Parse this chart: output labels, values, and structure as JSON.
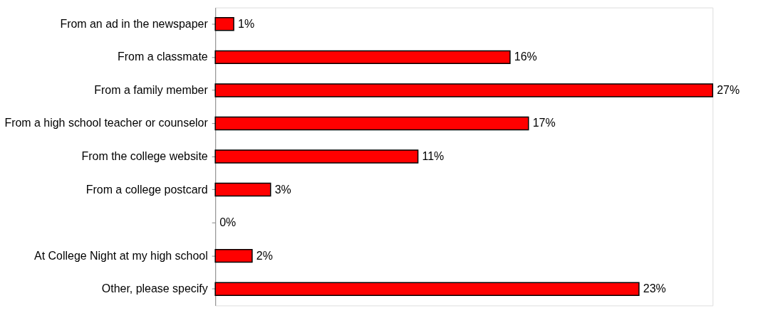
{
  "chart_data": {
    "type": "bar",
    "orientation": "horizontal",
    "categories": [
      "From an ad in the newspaper",
      "From a classmate",
      "From a family member",
      "From a high school teacher or counselor",
      "From the college website",
      "From a college postcard",
      null,
      "At College Night at my high school",
      "Other, please specify"
    ],
    "values": [
      1,
      16,
      27,
      17,
      11,
      3,
      0,
      2,
      23
    ],
    "value_labels": [
      "1%",
      "16%",
      "27%",
      "17%",
      "11%",
      "3%",
      "0%",
      "2%",
      "23%"
    ],
    "color": "#ff0000"
  }
}
